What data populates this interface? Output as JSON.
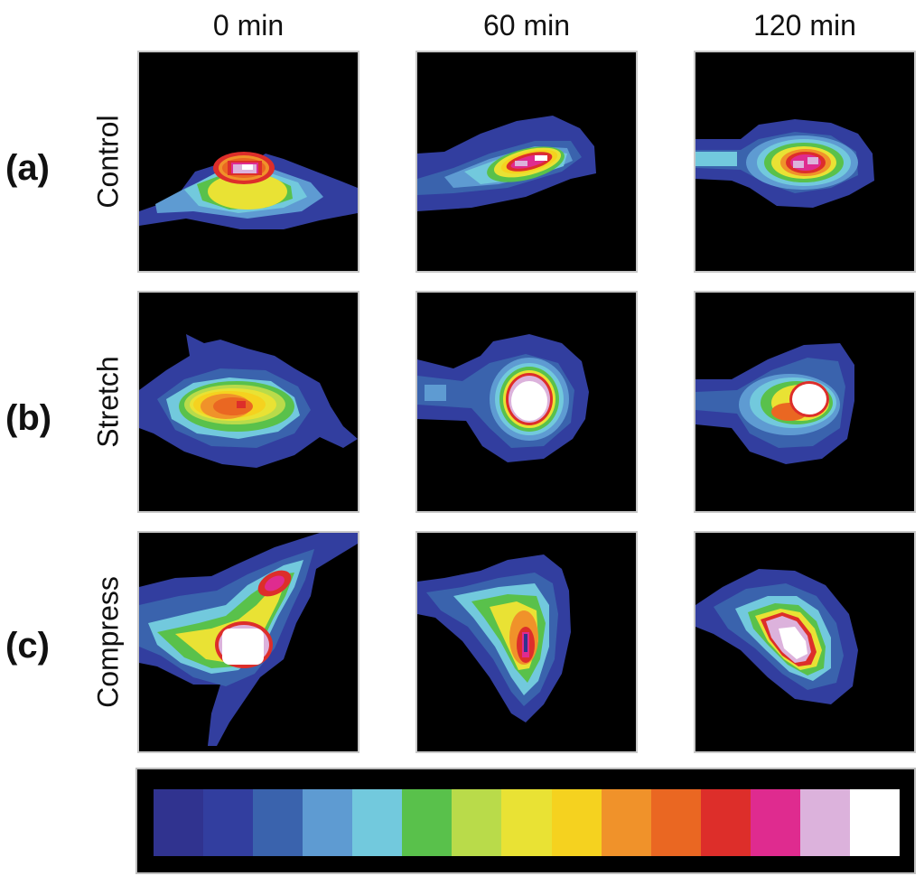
{
  "columns": [
    "0 min",
    "60 min",
    "120 min"
  ],
  "rows": [
    {
      "letter": "(a)",
      "label": "Control"
    },
    {
      "letter": "(b)",
      "label": "Stretch"
    },
    {
      "letter": "(c)",
      "label": "Compress"
    }
  ],
  "colorbar": [
    "#30338f",
    "#323e9f",
    "#3a63ad",
    "#5e9bd2",
    "#72c9dd",
    "#59c14b",
    "#b9db4a",
    "#e9e234",
    "#f5d21f",
    "#f0922a",
    "#ea6722",
    "#dd2e2a",
    "#df2b8f",
    "#dcb2dc",
    "#ffffff"
  ]
}
